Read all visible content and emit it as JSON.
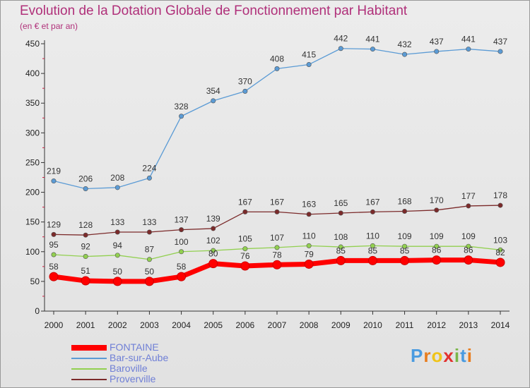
{
  "chart_data": {
    "type": "line",
    "title": "Evolution de la Dotation Globale de Fonctionnement par Habitant",
    "subtitle": "(en € et par an)",
    "x": [
      "2000",
      "2001",
      "2002",
      "2003",
      "2004",
      "2005",
      "2006",
      "2007",
      "2008",
      "2009",
      "2010",
      "2011",
      "2012",
      "2013",
      "2014"
    ],
    "ylim": [
      0,
      450
    ],
    "yticks": [
      0,
      50,
      100,
      150,
      200,
      250,
      300,
      350,
      400,
      450
    ],
    "grid": false,
    "legend_position": "bottom-left",
    "series": [
      {
        "name": "FONTAINE",
        "color": "#ff0000",
        "values": [
          58,
          51,
          50,
          50,
          58,
          80,
          76,
          78,
          79,
          85,
          85,
          85,
          86,
          86,
          82
        ]
      },
      {
        "name": "Bar-sur-Aube",
        "color": "#5b9bd5",
        "values": [
          219,
          206,
          208,
          224,
          328,
          354,
          370,
          408,
          415,
          442,
          441,
          432,
          437,
          441,
          437
        ]
      },
      {
        "name": "Baroville",
        "color": "#92d050",
        "values": [
          95,
          92,
          94,
          87,
          100,
          102,
          105,
          107,
          110,
          108,
          110,
          109,
          109,
          109,
          103
        ]
      },
      {
        "name": "Proverville",
        "color": "#7b2a2a",
        "values": [
          129,
          128,
          133,
          133,
          137,
          139,
          167,
          167,
          163,
          165,
          167,
          168,
          170,
          177,
          178
        ]
      }
    ]
  },
  "logo": {
    "text": "Proxiti",
    "colors": [
      "#4a9be0",
      "#e87d1e",
      "#f0c419",
      "#e2312f",
      "#7ab648",
      "#4a9be0",
      "#e87d1e"
    ]
  }
}
